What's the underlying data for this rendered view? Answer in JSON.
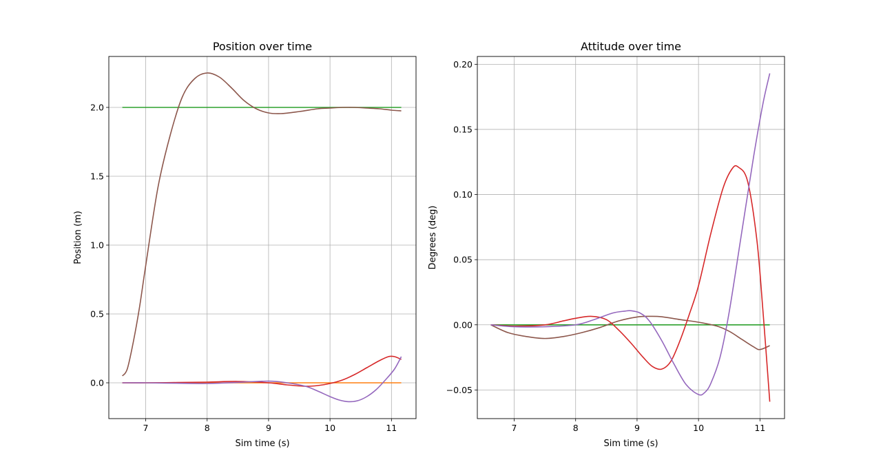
{
  "chart_data": [
    {
      "type": "line",
      "title": "Position over time",
      "xlabel": "Sim time (s)",
      "ylabel": "Position (m)",
      "xlim": [
        6.4,
        11.4
      ],
      "ylim": [
        -0.26,
        2.37
      ],
      "xticks": [
        7,
        8,
        9,
        10,
        11
      ],
      "yticks": [
        0.0,
        0.5,
        1.0,
        1.5,
        2.0
      ],
      "ytick_labels": [
        "0.0",
        "0.5",
        "1.0",
        "1.5",
        "2.0"
      ],
      "grid": true,
      "series": [
        {
          "color": "#2ca02c",
          "x": [
            6.62,
            11.16
          ],
          "y": [
            2.0,
            2.0
          ]
        },
        {
          "color": "#ff7f0e",
          "x": [
            6.62,
            11.16
          ],
          "y": [
            0.0,
            0.0
          ]
        },
        {
          "color": "#8c564b",
          "x": [
            6.62,
            6.7,
            6.8,
            6.9,
            7.0,
            7.2,
            7.4,
            7.6,
            7.8,
            8.0,
            8.2,
            8.4,
            8.6,
            8.8,
            9.0,
            9.2,
            9.5,
            9.8,
            10.0,
            10.2,
            10.4,
            10.6,
            10.8,
            11.0,
            11.16
          ],
          "y": [
            0.05,
            0.1,
            0.3,
            0.55,
            0.85,
            1.42,
            1.8,
            2.08,
            2.21,
            2.25,
            2.22,
            2.14,
            2.05,
            1.99,
            1.96,
            1.955,
            1.97,
            1.99,
            1.995,
            2.0,
            2.0,
            1.995,
            1.99,
            1.98,
            1.975
          ]
        },
        {
          "color": "#d62728",
          "x": [
            6.62,
            7.0,
            7.5,
            8.0,
            8.5,
            9.0,
            9.3,
            9.6,
            9.8,
            10.0,
            10.2,
            10.4,
            10.6,
            10.8,
            10.95,
            11.05,
            11.16
          ],
          "y": [
            0.0,
            0.0,
            0.002,
            0.005,
            0.01,
            0.0,
            -0.015,
            -0.025,
            -0.02,
            -0.005,
            0.02,
            0.06,
            0.11,
            0.16,
            0.19,
            0.19,
            0.17
          ]
        },
        {
          "color": "#9467bd",
          "x": [
            6.62,
            7.0,
            7.5,
            8.0,
            8.5,
            9.0,
            9.3,
            9.6,
            9.8,
            10.0,
            10.15,
            10.3,
            10.45,
            10.6,
            10.75,
            10.9,
            11.05,
            11.16
          ],
          "y": [
            0.0,
            0.0,
            -0.003,
            -0.005,
            0.003,
            0.012,
            0.0,
            -0.025,
            -0.06,
            -0.1,
            -0.125,
            -0.137,
            -0.13,
            -0.1,
            -0.05,
            0.02,
            0.1,
            0.19
          ]
        }
      ]
    },
    {
      "type": "line",
      "title": "Attitude over time",
      "xlabel": "Sim time (s)",
      "ylabel": "Degrees (deg)",
      "xlim": [
        6.4,
        11.4
      ],
      "ylim": [
        -0.072,
        0.206
      ],
      "xticks": [
        7,
        8,
        9,
        10,
        11
      ],
      "yticks": [
        -0.05,
        0.0,
        0.05,
        0.1,
        0.15,
        0.2
      ],
      "ytick_labels": [
        "−0.05",
        "0.00",
        "0.05",
        "0.10",
        "0.15",
        "0.20"
      ],
      "grid": true,
      "series": [
        {
          "color": "#2ca02c",
          "x": [
            6.62,
            11.16
          ],
          "y": [
            0.0,
            0.0
          ]
        },
        {
          "color": "#8c564b",
          "x": [
            6.62,
            6.9,
            7.2,
            7.5,
            7.8,
            8.1,
            8.4,
            8.7,
            9.0,
            9.2,
            9.4,
            9.7,
            10.0,
            10.3,
            10.5,
            10.7,
            10.9,
            11.0,
            11.16
          ],
          "y": [
            0.0,
            -0.006,
            -0.009,
            -0.0105,
            -0.009,
            -0.006,
            -0.002,
            0.003,
            0.006,
            0.0065,
            0.0062,
            0.004,
            0.002,
            -0.001,
            -0.005,
            -0.011,
            -0.017,
            -0.019,
            -0.016
          ]
        },
        {
          "color": "#d62728",
          "x": [
            6.62,
            7.0,
            7.5,
            7.8,
            8.0,
            8.25,
            8.5,
            8.7,
            8.9,
            9.1,
            9.25,
            9.4,
            9.55,
            9.7,
            9.85,
            10.0,
            10.2,
            10.4,
            10.55,
            10.65,
            10.8,
            10.95,
            11.05,
            11.16
          ],
          "y": [
            0.0,
            -0.001,
            0.0,
            0.003,
            0.005,
            0.0065,
            0.004,
            -0.004,
            -0.014,
            -0.025,
            -0.032,
            -0.034,
            -0.028,
            -0.012,
            0.008,
            0.03,
            0.07,
            0.105,
            0.12,
            0.121,
            0.11,
            0.065,
            0.01,
            -0.059
          ]
        },
        {
          "color": "#9467bd",
          "x": [
            6.62,
            7.0,
            7.5,
            8.0,
            8.3,
            8.6,
            8.8,
            8.9,
            9.05,
            9.2,
            9.4,
            9.6,
            9.8,
            10.0,
            10.1,
            10.2,
            10.35,
            10.5,
            10.7,
            10.9,
            11.05,
            11.16
          ],
          "y": [
            0.0,
            -0.0015,
            -0.0015,
            0.0,
            0.004,
            0.009,
            0.0105,
            0.0108,
            0.009,
            0.003,
            -0.012,
            -0.03,
            -0.046,
            -0.0535,
            -0.052,
            -0.045,
            -0.025,
            0.01,
            0.07,
            0.13,
            0.17,
            0.193
          ]
        }
      ]
    }
  ]
}
